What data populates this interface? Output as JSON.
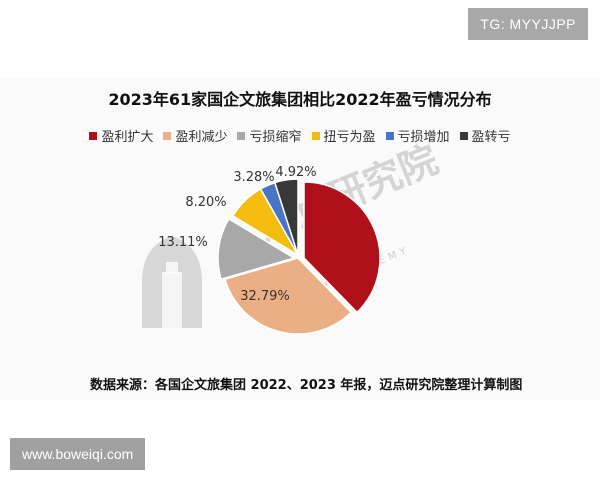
{
  "top_tag": "TG: MYYJJPP",
  "bottom_tag": "www.boweiqi.com",
  "watermark": {
    "text": "迈点研究院",
    "sub": "MEADIN ACADEMY"
  },
  "source": "数据来源：各国企文旅集团 2022、2023 年报，迈点研究院整理计算制图",
  "colors": {
    "盈利扩大": "#b0101a",
    "盈利减少": "#ecae85",
    "亏损缩窄": "#a8a8a8",
    "扭亏为盈": "#f4bc0e",
    "亏损增加": "#4a74c4",
    "盈转亏": "#383838"
  },
  "chart_data": {
    "type": "pie",
    "title": "2023年61家国企文旅集团相比2022年盈亏情况分布",
    "legend_placement": "top",
    "categories": [
      "盈利扩大",
      "盈利减少",
      "亏损缩窄",
      "扭亏为盈",
      "亏损增加",
      "盈转亏"
    ],
    "values": [
      37.7,
      32.79,
      13.11,
      8.2,
      3.28,
      4.92
    ],
    "labels": [
      "",
      "32.79%",
      "13.11%",
      "8.20%",
      "3.28%",
      "4.92%"
    ]
  }
}
